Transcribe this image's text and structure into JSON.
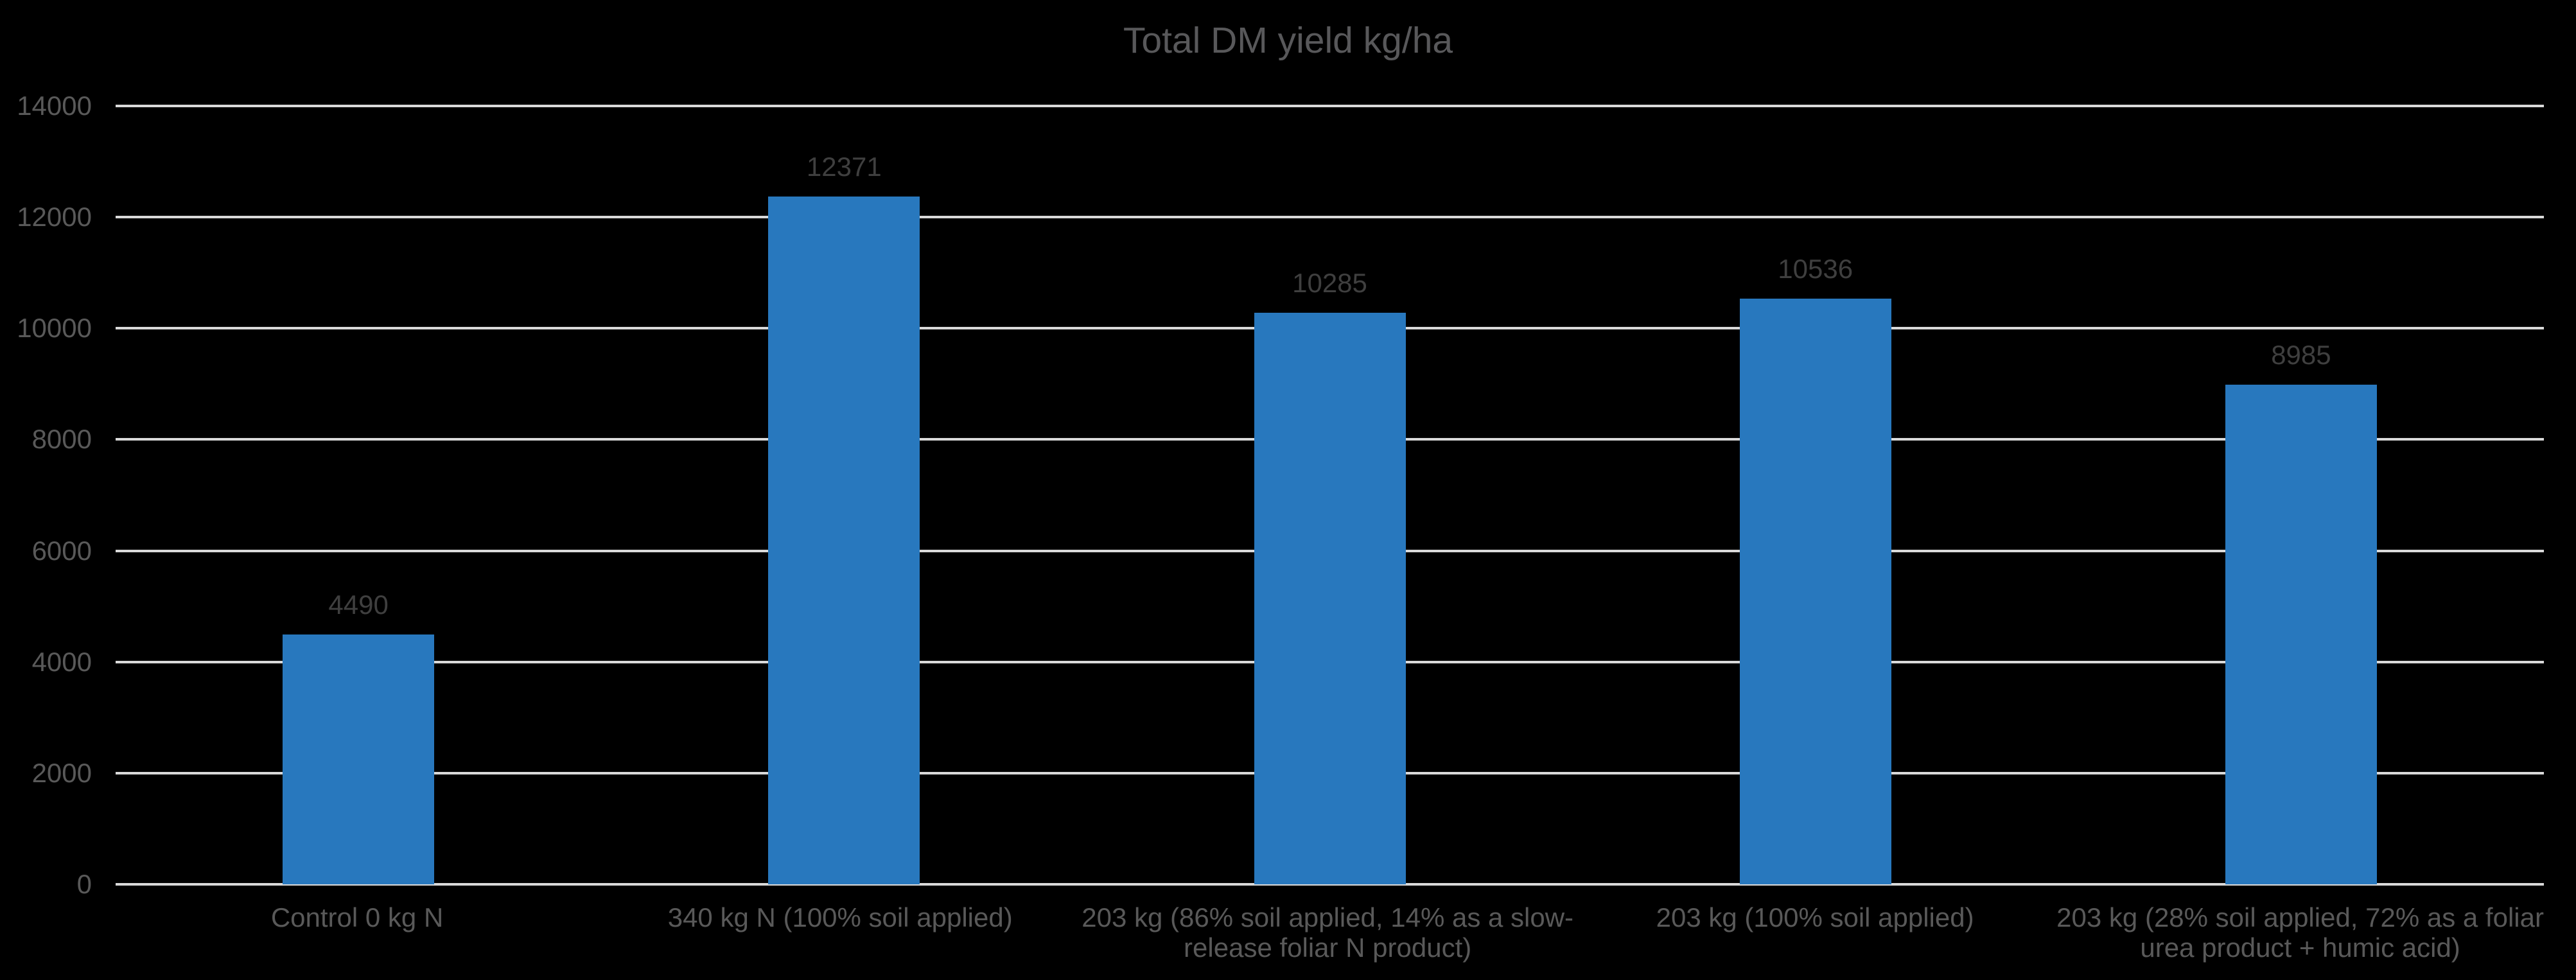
{
  "chart_data": {
    "type": "bar",
    "title": "Total DM yield kg/ha",
    "categories": [
      "Control 0 kg N",
      "340 kg N (100% soil applied)",
      "203 kg (86% soil applied, 14% as a slow-release foliar N product)",
      "203 kg (100% soil applied)",
      "203 kg (28% soil applied, 72% as a foliar urea product + humic acid)"
    ],
    "category_display_lines": [
      [
        "Control 0 kg N"
      ],
      [
        "340 kg N (100% soil applied)"
      ],
      [
        "203 kg (86% soil applied, 14% as a slow-",
        "release foliar N product)"
      ],
      [
        "203 kg (100% soil applied)"
      ],
      [
        "203 kg (28% soil applied, 72% as a foliar",
        "urea product + humic acid)"
      ]
    ],
    "values": [
      4490,
      12371,
      10285,
      10536,
      8985
    ],
    "value_labels": [
      "4490",
      "12371",
      "10285",
      "10536",
      "8985"
    ],
    "xlabel": "",
    "ylabel": "",
    "ylim": [
      0,
      14000
    ],
    "y_ticks": [
      0,
      2000,
      4000,
      6000,
      8000,
      10000,
      12000,
      14000
    ],
    "grid": true,
    "legend": false,
    "colors": {
      "background": "#000000",
      "bar": "#2878BE",
      "gridline": "#D9D9D9",
      "title": "#58585A",
      "axis_labels": "#595959",
      "value_labels": "#3F3F3F"
    }
  }
}
